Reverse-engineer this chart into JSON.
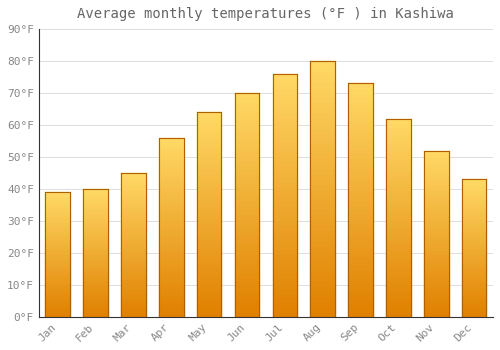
{
  "title": "Average monthly temperatures (°F ) in Kashiwa",
  "months": [
    "Jan",
    "Feb",
    "Mar",
    "Apr",
    "May",
    "Jun",
    "Jul",
    "Aug",
    "Sep",
    "Oct",
    "Nov",
    "Dec"
  ],
  "values": [
    39,
    40,
    45,
    56,
    64,
    70,
    76,
    80,
    73,
    62,
    52,
    43
  ],
  "bar_color_top": "#FFD966",
  "bar_color_bottom": "#E08000",
  "bar_edge_color": "#B06000",
  "background_color": "#FFFFFF",
  "grid_color": "#DDDDDD",
  "text_color": "#888888",
  "title_color": "#666666",
  "ylim": [
    0,
    90
  ],
  "title_fontsize": 10,
  "tick_fontsize": 8
}
